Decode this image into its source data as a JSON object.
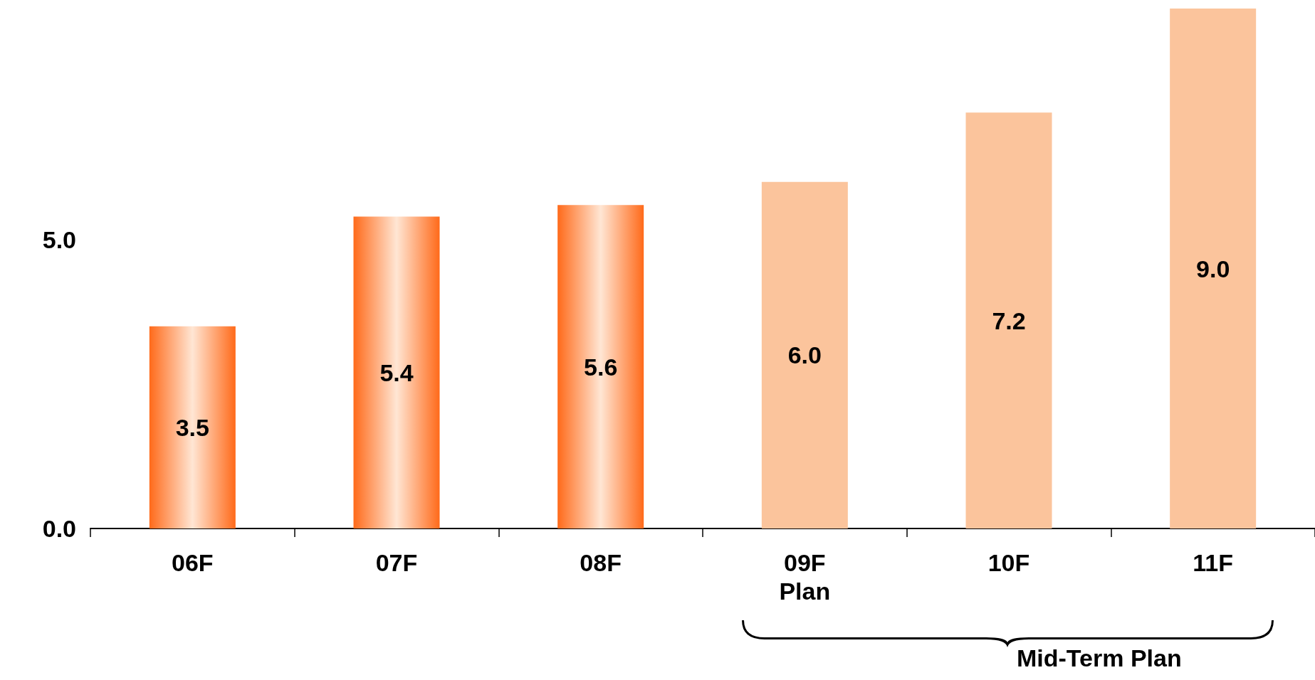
{
  "chart_data": {
    "type": "bar",
    "categories": [
      "06F",
      "07F",
      "08F",
      "09F\nPlan",
      "10F",
      "11F"
    ],
    "values": [
      3.5,
      5.4,
      5.6,
      6.0,
      7.2,
      9.0
    ],
    "value_labels": [
      "3.5",
      "5.4",
      "5.6",
      "6.0",
      "7.2",
      "9.0"
    ],
    "colors": [
      "#ff6a1a",
      "#ff6a1a",
      "#ff6a1a",
      "#fbc49c",
      "#fbc49c",
      "#fbc49c"
    ],
    "ylim": [
      0,
      9
    ],
    "yticks": [
      {
        "value": 0,
        "label": "0.0"
      },
      {
        "value": 5,
        "label": "5.0"
      }
    ],
    "grid": false,
    "annotations": [
      "Mid-Term Plan"
    ]
  }
}
